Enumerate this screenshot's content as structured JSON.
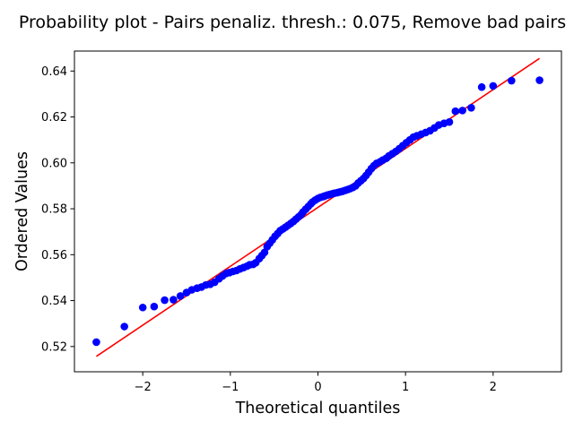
{
  "chart_data": {
    "type": "scatter",
    "title": "Probability plot - Pairs penaliz. thresh.: 0.075, Remove bad pairs",
    "xlabel": "Theoretical quantiles",
    "ylabel": "Ordered Values",
    "xlim": [
      -2.78,
      2.78
    ],
    "ylim": [
      0.509,
      0.6487
    ],
    "x_ticks": [
      -2,
      -1,
      0,
      1,
      2
    ],
    "y_ticks": [
      0.52,
      0.54,
      0.56,
      0.58,
      0.6,
      0.62,
      0.64
    ],
    "grid": false,
    "marker_color": "#0000ff",
    "fit_line_color": "#ff0000",
    "fit_line": {
      "x": [
        -2.53,
        2.53
      ],
      "y": [
        0.5157,
        0.6455
      ]
    },
    "series": [
      {
        "points": [
          [
            -2.53,
            0.5219
          ],
          [
            -2.21,
            0.5287
          ],
          [
            -2.0,
            0.537
          ],
          [
            -1.87,
            0.5374
          ],
          [
            -1.75,
            0.5402
          ],
          [
            -1.65,
            0.5404
          ],
          [
            -1.57,
            0.542
          ],
          [
            -1.5,
            0.5435
          ],
          [
            -1.44,
            0.5447
          ],
          [
            -1.38,
            0.5454
          ],
          [
            -1.33,
            0.5459
          ],
          [
            -1.28,
            0.5468
          ],
          [
            -1.23,
            0.5471
          ],
          [
            -1.18,
            0.548
          ],
          [
            -1.13,
            0.5495
          ],
          [
            -1.09,
            0.5507
          ],
          [
            -1.05,
            0.5518
          ],
          [
            -1.01,
            0.5522
          ],
          [
            -0.97,
            0.5527
          ],
          [
            -0.93,
            0.5531
          ],
          [
            -0.89,
            0.5538
          ],
          [
            -0.85,
            0.5544
          ],
          [
            -0.81,
            0.555
          ],
          [
            -0.78,
            0.5556
          ],
          [
            -0.74,
            0.5558
          ],
          [
            -0.71,
            0.5565
          ],
          [
            -0.67,
            0.5583
          ],
          [
            -0.64,
            0.5596
          ],
          [
            -0.61,
            0.561
          ],
          [
            -0.58,
            0.5635
          ],
          [
            -0.55,
            0.565
          ],
          [
            -0.52,
            0.5665
          ],
          [
            -0.49,
            0.568
          ],
          [
            -0.46,
            0.5692
          ],
          [
            -0.43,
            0.5705
          ],
          [
            -0.4,
            0.5712
          ],
          [
            -0.37,
            0.572
          ],
          [
            -0.34,
            0.5728
          ],
          [
            -0.31,
            0.5736
          ],
          [
            -0.28,
            0.5745
          ],
          [
            -0.25,
            0.5755
          ],
          [
            -0.22,
            0.5765
          ],
          [
            -0.19,
            0.5775
          ],
          [
            -0.17,
            0.5786
          ],
          [
            -0.14,
            0.5798
          ],
          [
            -0.11,
            0.581
          ],
          [
            -0.08,
            0.5822
          ],
          [
            -0.06,
            0.583
          ],
          [
            -0.03,
            0.5838
          ],
          [
            0.0,
            0.5845
          ],
          [
            0.03,
            0.585
          ],
          [
            0.06,
            0.5853
          ],
          [
            0.08,
            0.5856
          ],
          [
            0.11,
            0.586
          ],
          [
            0.14,
            0.5863
          ],
          [
            0.17,
            0.5866
          ],
          [
            0.19,
            0.5868
          ],
          [
            0.22,
            0.587
          ],
          [
            0.25,
            0.5873
          ],
          [
            0.28,
            0.5876
          ],
          [
            0.31,
            0.588
          ],
          [
            0.34,
            0.5884
          ],
          [
            0.37,
            0.5888
          ],
          [
            0.4,
            0.5893
          ],
          [
            0.43,
            0.59
          ],
          [
            0.46,
            0.5912
          ],
          [
            0.49,
            0.5922
          ],
          [
            0.52,
            0.5932
          ],
          [
            0.55,
            0.5945
          ],
          [
            0.58,
            0.596
          ],
          [
            0.61,
            0.5975
          ],
          [
            0.64,
            0.5988
          ],
          [
            0.67,
            0.5998
          ],
          [
            0.71,
            0.6005
          ],
          [
            0.74,
            0.6012
          ],
          [
            0.78,
            0.602
          ],
          [
            0.81,
            0.603
          ],
          [
            0.85,
            0.604
          ],
          [
            0.89,
            0.605
          ],
          [
            0.93,
            0.6062
          ],
          [
            0.97,
            0.6075
          ],
          [
            1.01,
            0.6088
          ],
          [
            1.05,
            0.61
          ],
          [
            1.09,
            0.6112
          ],
          [
            1.13,
            0.6118
          ],
          [
            1.18,
            0.6125
          ],
          [
            1.23,
            0.6132
          ],
          [
            1.28,
            0.614
          ],
          [
            1.33,
            0.6152
          ],
          [
            1.38,
            0.6165
          ],
          [
            1.44,
            0.6172
          ],
          [
            1.5,
            0.6178
          ],
          [
            1.57,
            0.6225
          ],
          [
            1.65,
            0.6228
          ],
          [
            1.75,
            0.624
          ],
          [
            1.87,
            0.633
          ],
          [
            2.0,
            0.6335
          ],
          [
            2.21,
            0.6358
          ],
          [
            2.53,
            0.636
          ]
        ]
      }
    ]
  }
}
